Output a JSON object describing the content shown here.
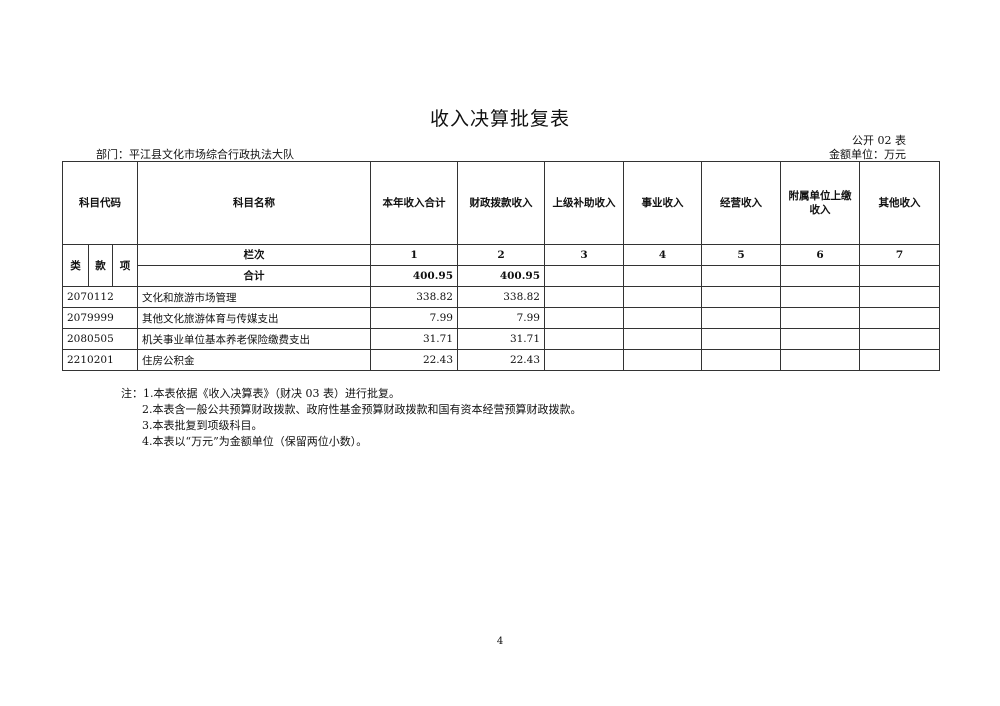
{
  "title": "收入决算批复表",
  "form_no": "公开 02 表",
  "department": "部门：平江县文化市场综合行政执法大队",
  "unit": "金额单位：万元",
  "headers": {
    "code": "科目代码",
    "name": "科目名称",
    "cols": [
      "本年收入合计",
      "财政拨款收入",
      "上级补助收入",
      "事业收入",
      "经营收入",
      "附属单位上缴收入",
      "其他收入"
    ],
    "lei": "类",
    "kuan": "款",
    "xiang": "项",
    "lanci": "栏次",
    "lanci_nums": [
      "1",
      "2",
      "3",
      "4",
      "5",
      "6",
      "7"
    ]
  },
  "total": {
    "label": "合计",
    "values": [
      "400.95",
      "400.95",
      "",
      "",
      "",
      "",
      ""
    ]
  },
  "rows": [
    {
      "code": "2070112",
      "name": "文化和旅游市场管理",
      "values": [
        "338.82",
        "338.82",
        "",
        "",
        "",
        "",
        ""
      ]
    },
    {
      "code": "2079999",
      "name": "其他文化旅游体育与传媒支出",
      "values": [
        "7.99",
        "7.99",
        "",
        "",
        "",
        "",
        ""
      ]
    },
    {
      "code": "2080505",
      "name": "机关事业单位基本养老保险缴费支出",
      "values": [
        "31.71",
        "31.71",
        "",
        "",
        "",
        "",
        ""
      ]
    },
    {
      "code": "2210201",
      "name": "住房公积金",
      "values": [
        "22.43",
        "22.43",
        "",
        "",
        "",
        "",
        ""
      ]
    }
  ],
  "notes": {
    "prefix": "注：",
    "items": [
      "1.本表依据《收入决算表》（财决 03 表）进行批复。",
      "2.本表含一般公共预算财政拨款、政府性基金预算财政拨款和国有资本经营预算财政拨款。",
      "3.本表批复到项级科目。",
      "4.本表以“万元”为金额单位（保留两位小数）。"
    ]
  },
  "page_number": "4"
}
